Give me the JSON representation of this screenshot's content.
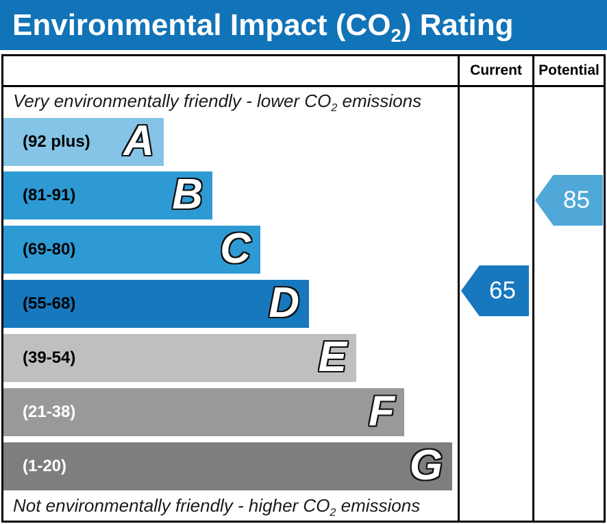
{
  "title": {
    "prefix": "Environmental Impact (CO",
    "subscript": "2",
    "suffix": ") Rating"
  },
  "columns": {
    "current": "Current",
    "potential": "Potential"
  },
  "notes": {
    "top": {
      "prefix": "Very environmentally friendly - lower CO",
      "subscript": "2",
      "suffix": " emissions"
    },
    "bottom": {
      "prefix": "Not environmentally friendly - higher CO",
      "subscript": "2",
      "suffix": " emissions"
    }
  },
  "colors": {
    "title_bar_bg": "#1173B8",
    "title_text": "#FFFFFF",
    "border": "#000000",
    "current_arrow": "#1878BE",
    "potential_arrow": "#4FA8D8"
  },
  "chart_data": {
    "type": "bar",
    "title": "Environmental Impact (CO2) Rating",
    "columns": [
      "Current",
      "Potential"
    ],
    "top_note": "Very environmentally friendly - lower CO2 emissions",
    "bottom_note": "Not environmentally friendly - higher CO2 emissions",
    "bands": [
      {
        "letter": "A",
        "range_label": "(92 plus)",
        "color": "#85C4E6",
        "range_text_color": "#000000"
      },
      {
        "letter": "B",
        "range_label": "(81-91)",
        "color": "#2E9AD4",
        "range_text_color": "#000000"
      },
      {
        "letter": "C",
        "range_label": "(69-80)",
        "color": "#2E9AD4",
        "range_text_color": "#000000"
      },
      {
        "letter": "D",
        "range_label": "(55-68)",
        "color": "#1878BE",
        "range_text_color": "#000000"
      },
      {
        "letter": "E",
        "range_label": "(39-54)",
        "color": "#BFBFBF",
        "range_text_color": "#000000"
      },
      {
        "letter": "F",
        "range_label": "(21-38)",
        "color": "#999999",
        "range_text_color": "#FFFFFF"
      },
      {
        "letter": "G",
        "range_label": "(1-20)",
        "color": "#7E7E7E",
        "range_text_color": "#FFFFFF"
      }
    ],
    "current": {
      "value": 65,
      "band": "D"
    },
    "potential": {
      "value": 85,
      "band": "B"
    }
  }
}
